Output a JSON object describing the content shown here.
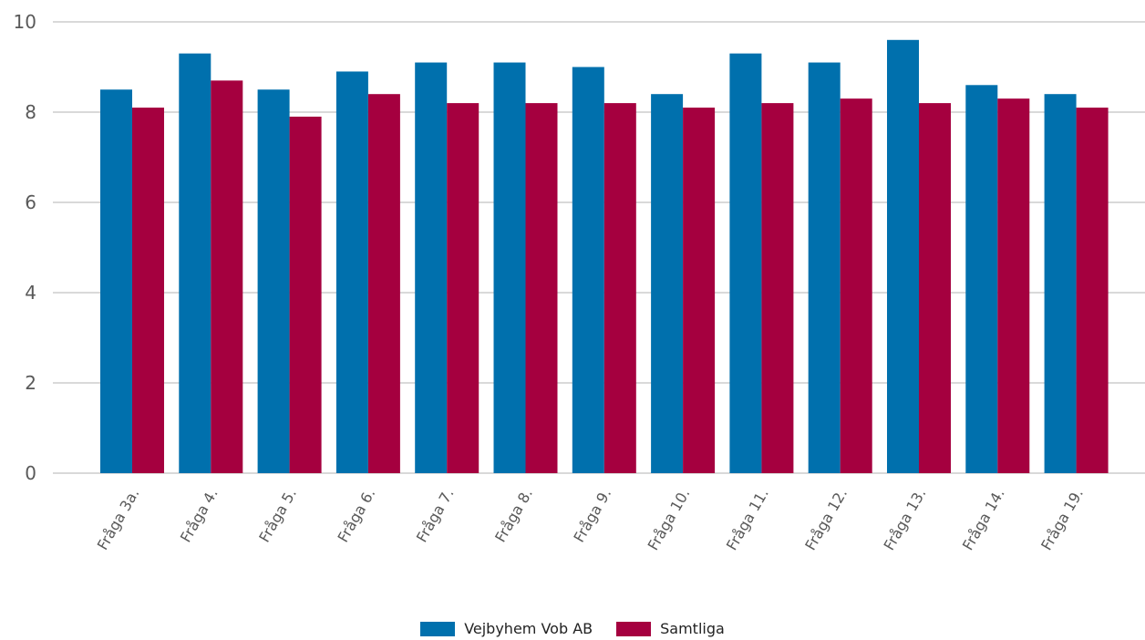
{
  "chart_data": {
    "type": "bar",
    "categories": [
      "Fråga 3a.",
      "Fråga 4.",
      "Fråga 5.",
      "Fråga 6.",
      "Fråga 7.",
      "Fråga 8.",
      "Fråga 9.",
      "Fråga 10.",
      "Fråga 11.",
      "Fråga 12.",
      "Fråga 13.",
      "Fråga 14.",
      "Fråga 19."
    ],
    "series": [
      {
        "name": "Vejbyhem Vob AB",
        "color": "#0070AD",
        "values": [
          8.5,
          9.3,
          8.5,
          8.9,
          9.1,
          9.1,
          9.0,
          8.4,
          9.3,
          9.1,
          9.6,
          8.6,
          8.4
        ]
      },
      {
        "name": "Samtliga",
        "color": "#A5003F",
        "values": [
          8.1,
          8.7,
          7.9,
          8.4,
          8.2,
          8.2,
          8.2,
          8.1,
          8.2,
          8.3,
          8.2,
          8.3,
          8.1
        ]
      }
    ],
    "yticks": [
      0,
      2,
      4,
      6,
      8,
      10
    ],
    "ylim": [
      0,
      10
    ],
    "grid": true,
    "legend_position": "bottom",
    "title": "",
    "xlabel": "",
    "ylabel": ""
  }
}
